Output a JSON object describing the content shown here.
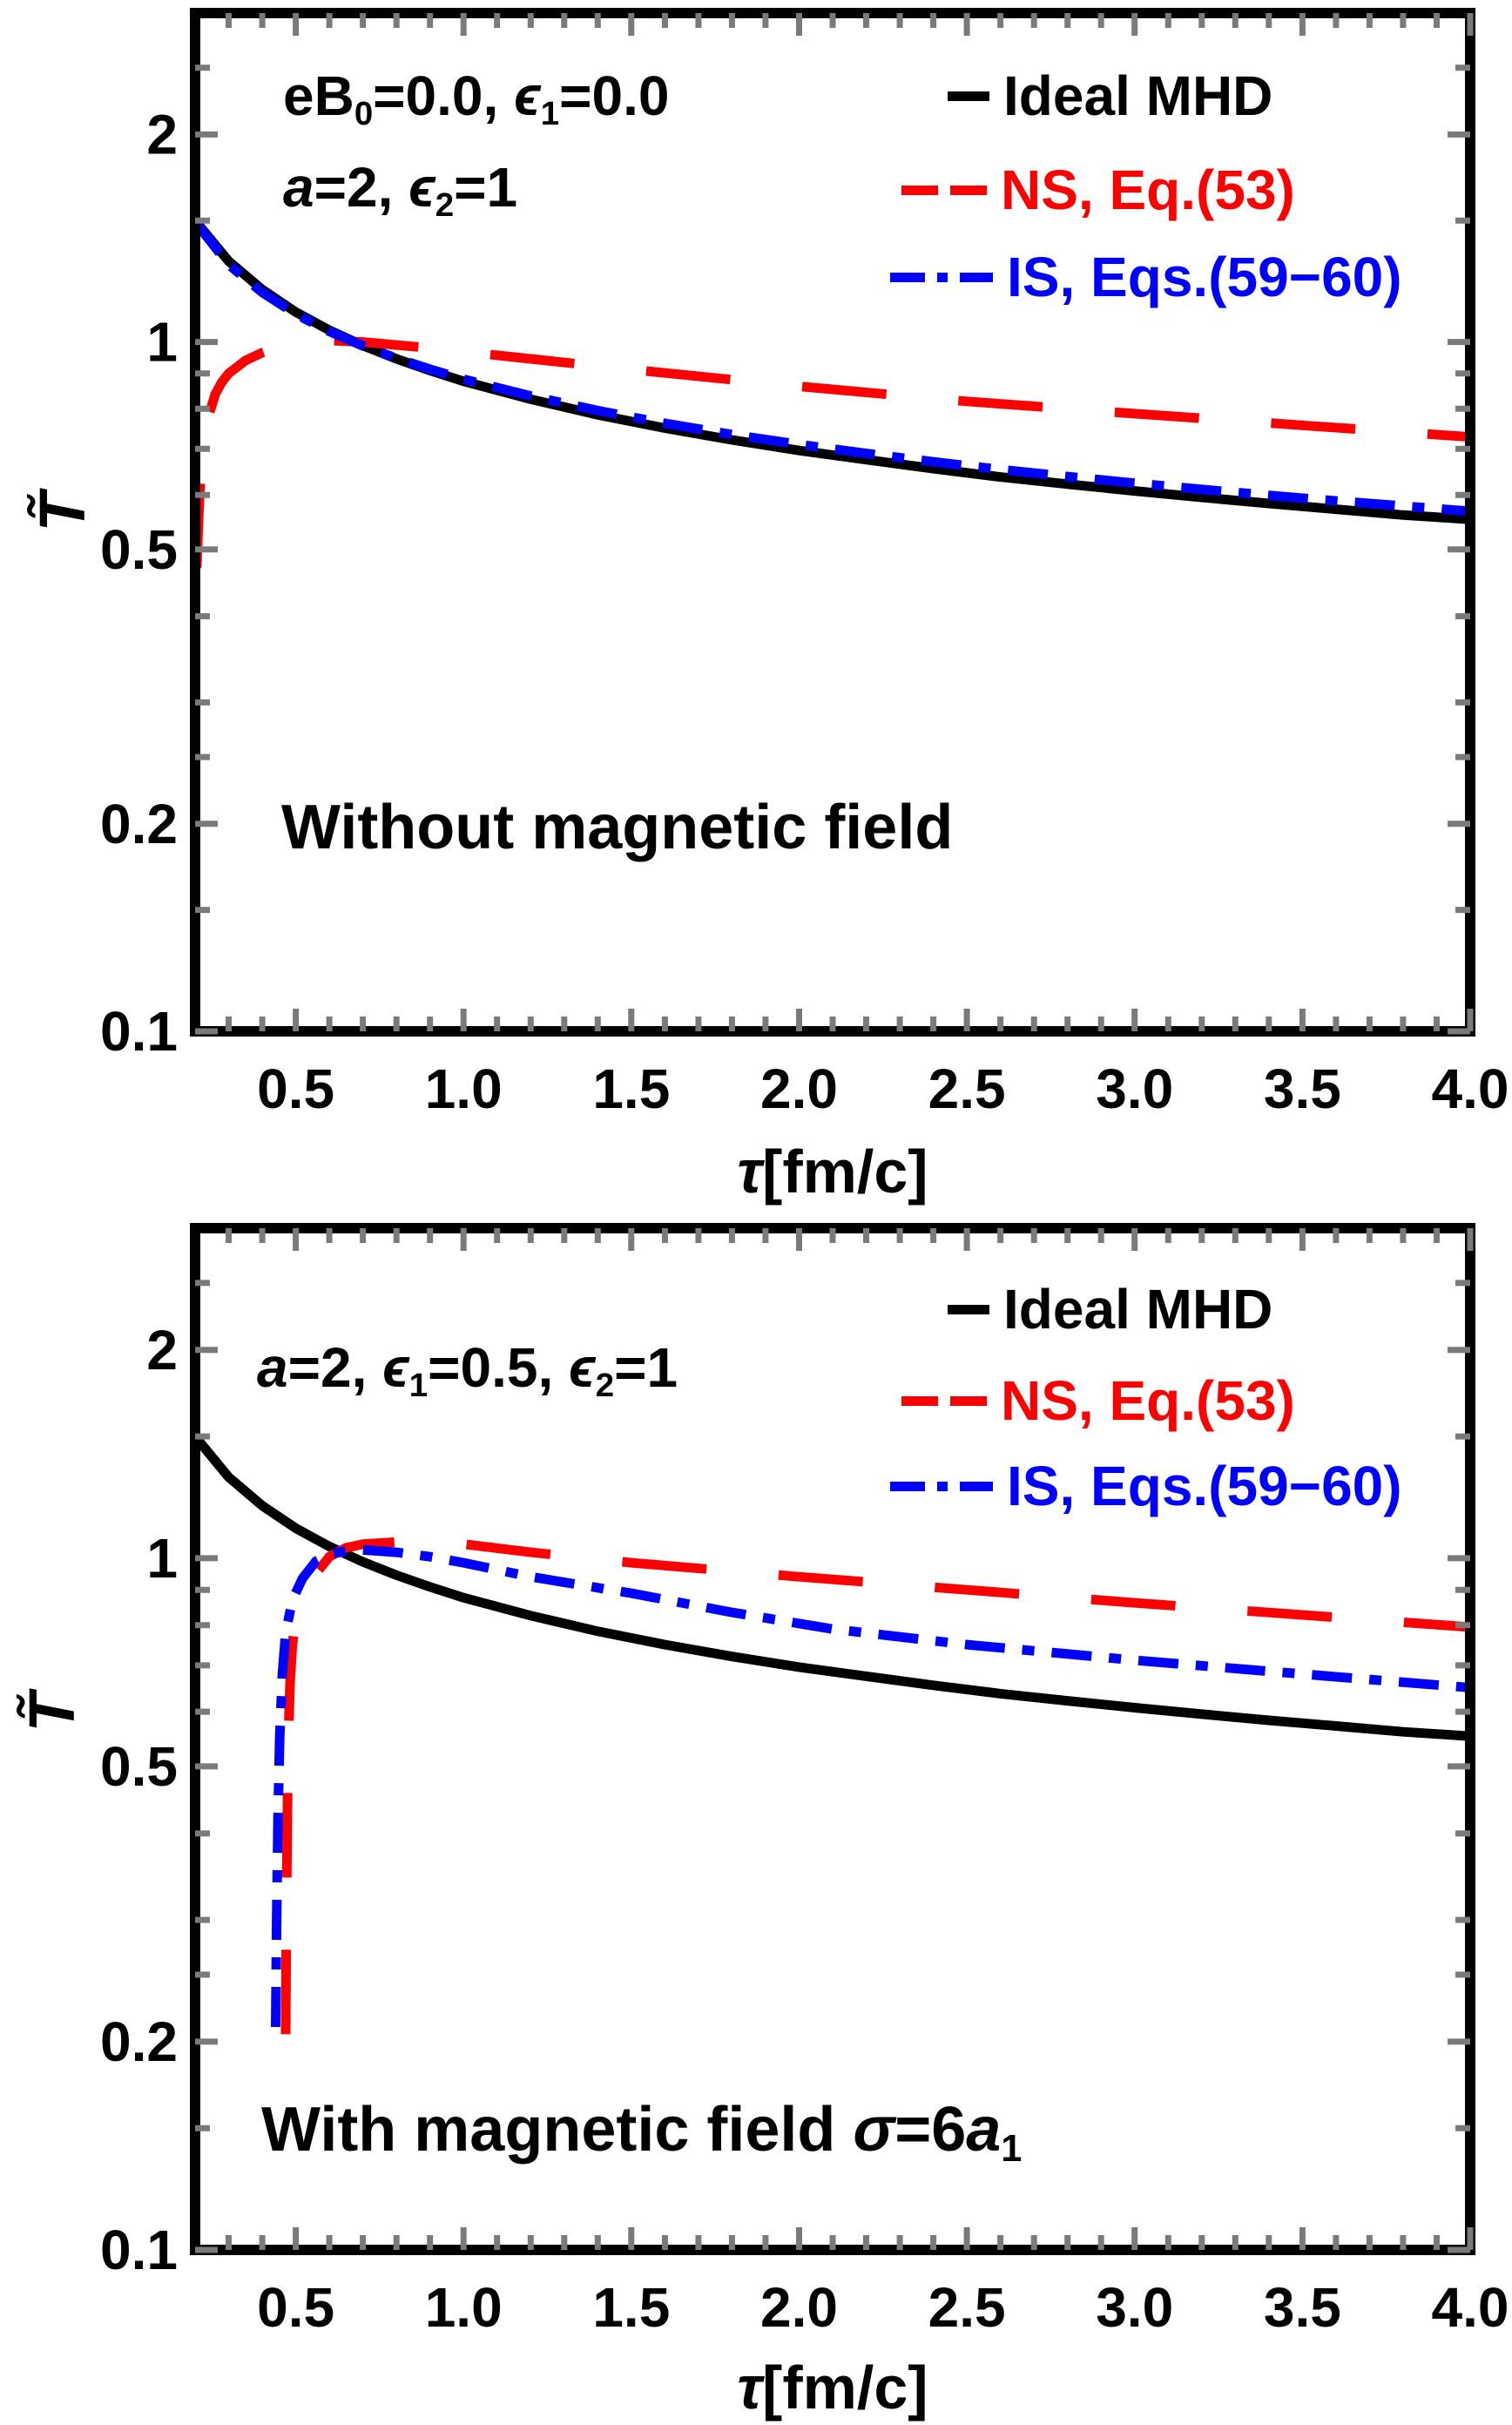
{
  "figure": {
    "background": "#ffffff"
  },
  "chart_data": [
    {
      "type": "line",
      "panel": "top",
      "title": "",
      "xlabel": "τ[fm/c]",
      "ylabel": "T̃",
      "xlabel_segments": [
        {
          "t": "τ",
          "it": true
        },
        {
          "t": "[fm/c]"
        }
      ],
      "ylabel_segments": [
        {
          "t": "T̃",
          "it": true
        }
      ],
      "xscale": "linear",
      "yscale": "log",
      "xlim": [
        0.2,
        4.0
      ],
      "ylim": [
        0.1,
        3.0
      ],
      "grid": false,
      "legend_position": "top-right-inside",
      "xticks": {
        "values": [
          0.5,
          1.0,
          1.5,
          2.0,
          2.5,
          3.0,
          3.5,
          4.0
        ],
        "labels": [
          "0.5",
          "1.0",
          "1.5",
          "2.0",
          "2.5",
          "3.0",
          "3.5",
          "4.0"
        ]
      },
      "yticks": {
        "values": [
          2,
          1,
          0.5,
          0.2,
          0.1
        ],
        "labels": [
          "2",
          "1",
          "0.5",
          "0.2",
          "0.1"
        ]
      },
      "yticks_minor": [
        0.15,
        0.25,
        0.3,
        0.4,
        0.6,
        0.7,
        0.8,
        0.9,
        1.5,
        2.5
      ],
      "annotations": [
        {
          "id": "initial-conditions",
          "text": "eB0=0.0, ϵ1=0.0",
          "segments": [
            {
              "t": "eB"
            },
            {
              "t": "0",
              "sub": true
            },
            {
              "t": "=0.0, "
            },
            {
              "t": "ϵ",
              "it": true
            },
            {
              "t": "1",
              "sub": true
            },
            {
              "t": "=0.0"
            }
          ]
        },
        {
          "id": "parameters",
          "text": "a=2, ϵ2=1",
          "segments": [
            {
              "t": "a",
              "it": true
            },
            {
              "t": "=2, "
            },
            {
              "t": "ϵ",
              "it": true
            },
            {
              "t": "2",
              "sub": true
            },
            {
              "t": "=1"
            }
          ]
        },
        {
          "id": "condition-label",
          "text": "Without magnetic field",
          "segments": [
            {
              "t": "Without magnetic field"
            }
          ]
        }
      ],
      "legend": [
        {
          "label": "Ideal MHD",
          "color": "#000000",
          "style": "solid"
        },
        {
          "label": "NS, Eq.(53)",
          "color": "#ff0000",
          "style": "dashed"
        },
        {
          "label": "IS, Eqs.(59−60)",
          "color": "#0000ff",
          "style": "dashdot"
        }
      ],
      "series": [
        {
          "name": "Ideal MHD",
          "color": "#000000",
          "style": "solid",
          "points": [
            [
              0.2,
              1.5
            ],
            [
              0.3,
              1.31
            ],
            [
              0.4,
              1.191
            ],
            [
              0.5,
              1.105
            ],
            [
              0.6,
              1.04
            ],
            [
              0.7,
              0.988
            ],
            [
              0.8,
              0.945
            ],
            [
              0.9,
              0.909
            ],
            [
              1.0,
              0.877
            ],
            [
              1.2,
              0.826
            ],
            [
              1.4,
              0.784
            ],
            [
              1.6,
              0.75
            ],
            [
              1.8,
              0.721
            ],
            [
              2.0,
              0.696
            ],
            [
              2.2,
              0.675
            ],
            [
              2.4,
              0.655
            ],
            [
              2.6,
              0.637
            ],
            [
              2.8,
              0.622
            ],
            [
              3.0,
              0.608
            ],
            [
              3.2,
              0.595
            ],
            [
              3.4,
              0.583
            ],
            [
              3.6,
              0.572
            ],
            [
              3.8,
              0.561
            ],
            [
              4.0,
              0.553
            ]
          ]
        },
        {
          "name": "NS, Eq.(53)",
          "color": "#ff0000",
          "style": "dashed",
          "points": [
            [
              0.205,
              0.47
            ],
            [
              0.21,
              0.55
            ],
            [
              0.215,
              0.62
            ],
            [
              0.225,
              0.7
            ],
            [
              0.24,
              0.78
            ],
            [
              0.26,
              0.84
            ],
            [
              0.28,
              0.875
            ],
            [
              0.3,
              0.9
            ],
            [
              0.35,
              0.94
            ],
            [
              0.4,
              0.965
            ],
            [
              0.45,
              0.985
            ],
            [
              0.5,
              0.998
            ],
            [
              0.55,
              1.005
            ],
            [
              0.6,
              1.005
            ],
            [
              0.7,
              1.0
            ],
            [
              0.8,
              0.99
            ],
            [
              0.9,
              0.98
            ],
            [
              1.0,
              0.968
            ],
            [
              1.2,
              0.945
            ],
            [
              1.5,
              0.912
            ],
            [
              2.0,
              0.862
            ],
            [
              2.5,
              0.82
            ],
            [
              3.0,
              0.787
            ],
            [
              3.5,
              0.757
            ],
            [
              4.0,
              0.728
            ]
          ]
        },
        {
          "name": "IS, Eqs.(59−60)",
          "color": "#0000ff",
          "style": "dashdot",
          "points": [
            [
              0.2,
              1.495
            ],
            [
              0.3,
              1.295
            ],
            [
              0.4,
              1.18
            ],
            [
              0.5,
              1.098
            ],
            [
              0.6,
              1.036
            ],
            [
              0.7,
              0.987
            ],
            [
              0.8,
              0.947
            ],
            [
              0.9,
              0.913
            ],
            [
              1.0,
              0.883
            ],
            [
              1.2,
              0.835
            ],
            [
              1.4,
              0.795
            ],
            [
              1.6,
              0.762
            ],
            [
              1.8,
              0.734
            ],
            [
              2.0,
              0.71
            ],
            [
              2.2,
              0.689
            ],
            [
              2.4,
              0.67
            ],
            [
              2.6,
              0.653
            ],
            [
              2.8,
              0.638
            ],
            [
              3.0,
              0.624
            ],
            [
              3.2,
              0.611
            ],
            [
              3.4,
              0.599
            ],
            [
              3.6,
              0.588
            ],
            [
              3.8,
              0.578
            ],
            [
              4.0,
              0.568
            ]
          ]
        }
      ]
    },
    {
      "type": "line",
      "panel": "bottom",
      "title": "",
      "xlabel": "τ[fm/c]",
      "ylabel": "T̃",
      "xlabel_segments": [
        {
          "t": "τ",
          "it": true
        },
        {
          "t": "[fm/c]"
        }
      ],
      "ylabel_segments": [
        {
          "t": "T̃",
          "it": true
        }
      ],
      "xscale": "linear",
      "yscale": "log",
      "xlim": [
        0.2,
        4.0
      ],
      "ylim": [
        0.1,
        3.0
      ],
      "grid": false,
      "legend_position": "top-right-inside",
      "xticks": {
        "values": [
          0.5,
          1.0,
          1.5,
          2.0,
          2.5,
          3.0,
          3.5,
          4.0
        ],
        "labels": [
          "0.5",
          "1.0",
          "1.5",
          "2.0",
          "2.5",
          "3.0",
          "3.5",
          "4.0"
        ]
      },
      "yticks": {
        "values": [
          2,
          1,
          0.5,
          0.2,
          0.1
        ],
        "labels": [
          "2",
          "1",
          "0.5",
          "0.2",
          "0.1"
        ]
      },
      "yticks_minor": [
        0.15,
        0.25,
        0.3,
        0.4,
        0.6,
        0.7,
        0.8,
        0.9,
        1.5,
        2.5
      ],
      "annotations": [
        {
          "id": "parameters",
          "text": "a=2, ϵ1=0.5, ϵ2=1",
          "segments": [
            {
              "t": "a",
              "it": true
            },
            {
              "t": "=2, "
            },
            {
              "t": "ϵ",
              "it": true
            },
            {
              "t": "1",
              "sub": true
            },
            {
              "t": "=0.5, "
            },
            {
              "t": "ϵ",
              "it": true
            },
            {
              "t": "2",
              "sub": true
            },
            {
              "t": "=1"
            }
          ]
        },
        {
          "id": "condition-label",
          "text": "With magnetic field σ=6a1",
          "segments": [
            {
              "t": "With magnetic field "
            },
            {
              "t": "σ",
              "it": true
            },
            {
              "t": "=6"
            },
            {
              "t": "a",
              "it": true
            },
            {
              "t": "1",
              "sub": true
            }
          ]
        }
      ],
      "legend": [
        {
          "label": "Ideal MHD",
          "color": "#000000",
          "style": "solid"
        },
        {
          "label": "NS, Eq.(53)",
          "color": "#ff0000",
          "style": "dashed"
        },
        {
          "label": "IS, Eqs.(59−60)",
          "color": "#0000ff",
          "style": "dashdot"
        }
      ],
      "series": [
        {
          "name": "Ideal MHD",
          "color": "#000000",
          "style": "solid",
          "points": [
            [
              0.2,
              1.5
            ],
            [
              0.3,
              1.31
            ],
            [
              0.4,
              1.191
            ],
            [
              0.5,
              1.105
            ],
            [
              0.6,
              1.04
            ],
            [
              0.7,
              0.988
            ],
            [
              0.8,
              0.945
            ],
            [
              0.9,
              0.909
            ],
            [
              1.0,
              0.877
            ],
            [
              1.2,
              0.826
            ],
            [
              1.4,
              0.784
            ],
            [
              1.6,
              0.75
            ],
            [
              1.8,
              0.721
            ],
            [
              2.0,
              0.696
            ],
            [
              2.2,
              0.675
            ],
            [
              2.4,
              0.655
            ],
            [
              2.6,
              0.637
            ],
            [
              2.8,
              0.622
            ],
            [
              3.0,
              0.608
            ],
            [
              3.2,
              0.595
            ],
            [
              3.4,
              0.583
            ],
            [
              3.6,
              0.572
            ],
            [
              3.8,
              0.561
            ],
            [
              4.0,
              0.553
            ]
          ]
        },
        {
          "name": "NS, Eq.(53)",
          "color": "#ff0000",
          "style": "dashed",
          "points": [
            [
              0.47,
              0.205
            ],
            [
              0.472,
              0.3
            ],
            [
              0.475,
              0.42
            ],
            [
              0.478,
              0.55
            ],
            [
              0.483,
              0.66
            ],
            [
              0.49,
              0.75
            ],
            [
              0.5,
              0.82
            ],
            [
              0.52,
              0.88
            ],
            [
              0.56,
              0.95
            ],
            [
              0.6,
              1.005
            ],
            [
              0.65,
              1.035
            ],
            [
              0.7,
              1.048
            ],
            [
              0.8,
              1.055
            ],
            [
              0.9,
              1.055
            ],
            [
              1.0,
              1.048
            ],
            [
              1.2,
              1.02
            ],
            [
              1.5,
              0.985
            ],
            [
              2.0,
              0.94
            ],
            [
              2.5,
              0.9
            ],
            [
              3.0,
              0.862
            ],
            [
              3.5,
              0.828
            ],
            [
              4.0,
              0.795
            ]
          ]
        },
        {
          "name": "IS, Eqs.(59−60)",
          "color": "#0000ff",
          "style": "dashdot",
          "points": [
            [
              0.44,
              0.21
            ],
            [
              0.443,
              0.3
            ],
            [
              0.447,
              0.42
            ],
            [
              0.452,
              0.55
            ],
            [
              0.46,
              0.68
            ],
            [
              0.47,
              0.78
            ],
            [
              0.49,
              0.87
            ],
            [
              0.52,
              0.935
            ],
            [
              0.56,
              0.99
            ],
            [
              0.6,
              1.012
            ],
            [
              0.65,
              1.025
            ],
            [
              0.7,
              1.028
            ],
            [
              0.8,
              1.02
            ],
            [
              0.9,
              1.005
            ],
            [
              1.0,
              0.985
            ],
            [
              1.2,
              0.94
            ],
            [
              1.5,
              0.89
            ],
            [
              1.8,
              0.835
            ],
            [
              2.1,
              0.79
            ],
            [
              2.5,
              0.75
            ],
            [
              3.0,
              0.712
            ],
            [
              3.5,
              0.68
            ],
            [
              4.0,
              0.65
            ]
          ]
        }
      ]
    }
  ]
}
